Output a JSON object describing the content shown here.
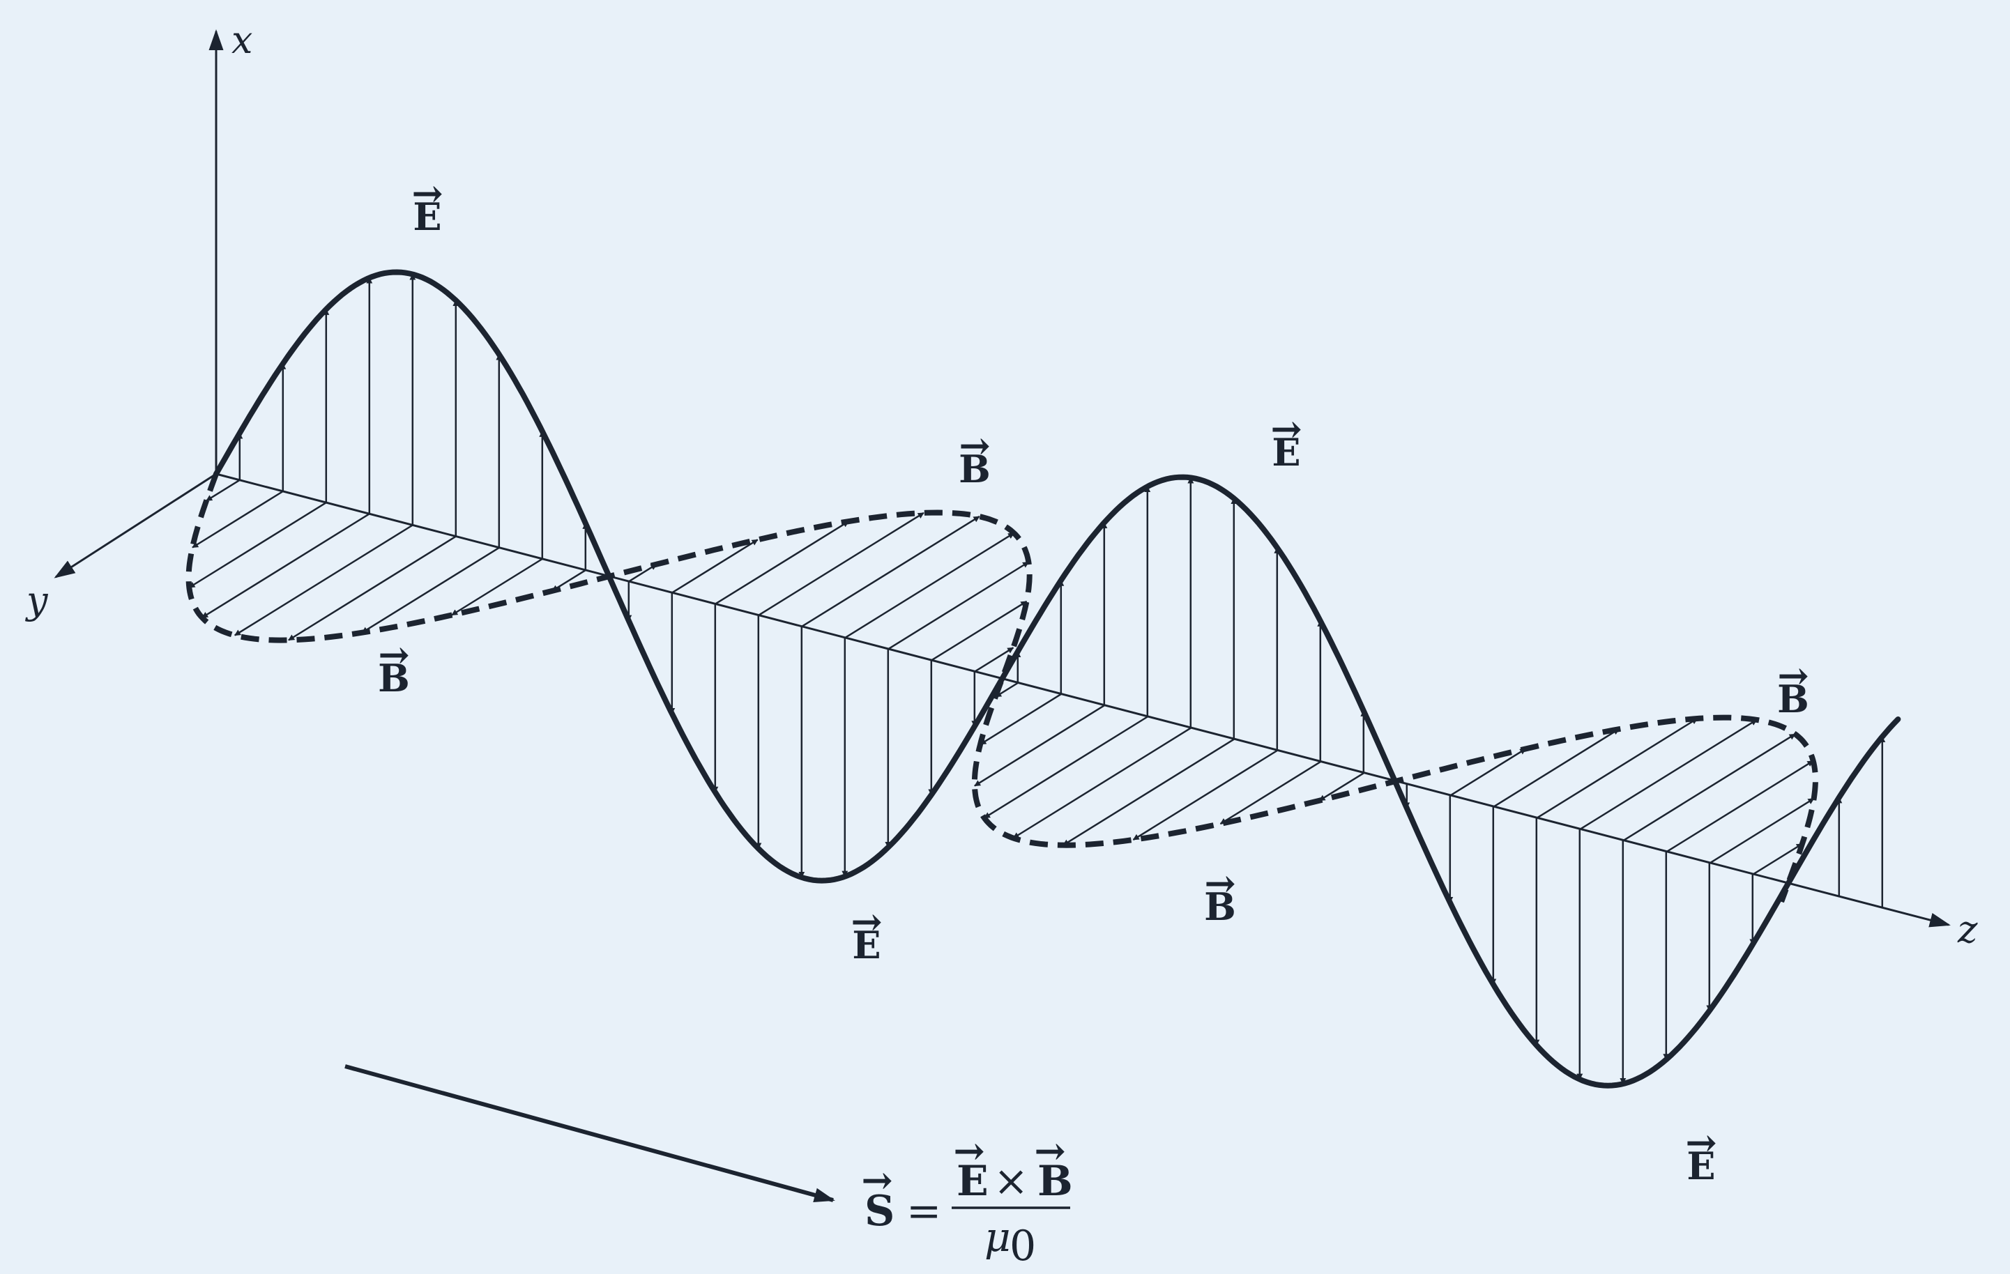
{
  "axes": {
    "x_label": "x",
    "y_label": "y",
    "z_label": "z"
  },
  "field_labels": {
    "electric": "E",
    "magnetic": "B",
    "vector_arrow": "⃗"
  },
  "formula": {
    "lhs": "S",
    "equals": "=",
    "numerator_left": "E",
    "times": "×",
    "numerator_right": "B",
    "denominator_symbol": "μ",
    "denominator_subscript": "0"
  },
  "colors": {
    "ink": "#1c2430",
    "background": "#e8f1f9"
  }
}
